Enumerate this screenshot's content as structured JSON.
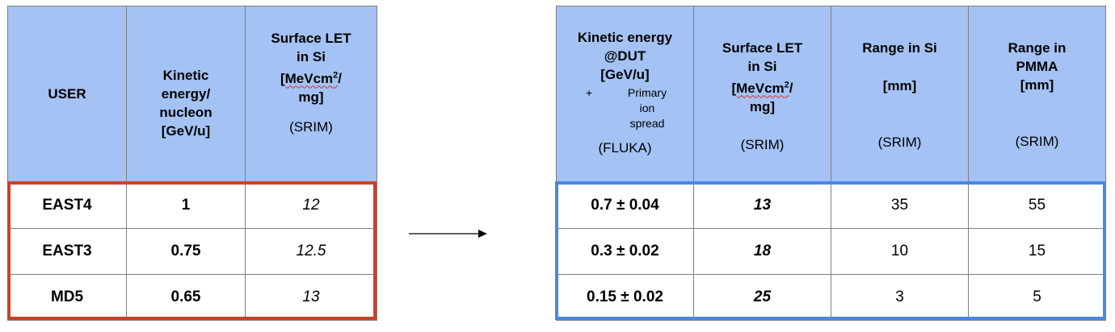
{
  "left_table": {
    "headers": {
      "user": "USER",
      "kinetic_line1": "Kinetic",
      "kinetic_line2": "energy/",
      "kinetic_line3": "nucleon",
      "kinetic_line4": "[GeV/u]",
      "let_line1": "Surface LET",
      "let_line2": "in Si",
      "let_line3a": "[MeVcm",
      "let_line3sup": "2",
      "let_line3b": "/",
      "let_line4": "mg]",
      "let_source": "(SRIM)"
    },
    "rows": [
      {
        "user": "EAST4",
        "energy": "1",
        "let": "12"
      },
      {
        "user": "EAST3",
        "energy": "0.75",
        "let": "12.5"
      },
      {
        "user": "MD5",
        "energy": "0.65",
        "let": "13"
      }
    ]
  },
  "right_table": {
    "headers": {
      "ke_line1": "Kinetic energy",
      "ke_line2": "@DUT",
      "ke_line3": "[GeV/u]",
      "ke_plus": "+",
      "ke_spread1": "Primary",
      "ke_spread2": "ion",
      "ke_spread3": "spread",
      "ke_source": "(FLUKA)",
      "let_line1": "Surface LET",
      "let_line2": "in Si",
      "let_line3a": "[MeVcm",
      "let_line3sup": "2",
      "let_line3b": "/",
      "let_line4": "mg]",
      "let_source": "(SRIM)",
      "rsi_line1": "Range in Si",
      "rsi_line2": "[mm]",
      "rsi_source": "(SRIM)",
      "rpmma_line1": "Range in",
      "rpmma_line2": "PMMA",
      "rpmma_line3": "[mm]",
      "rpmma_source": "(SRIM)"
    },
    "rows": [
      {
        "energy": "0.7 ± 0.04",
        "let": "13",
        "range_si": "35",
        "range_pmma": "55"
      },
      {
        "energy": "0.3 ± 0.02",
        "let": "18",
        "range_si": "10",
        "range_pmma": "15"
      },
      {
        "energy": "0.15 ± 0.02",
        "let": "25",
        "range_si": "3",
        "range_pmma": "5"
      }
    ]
  },
  "colors": {
    "header_bg": "#a4c2f4",
    "left_highlight": "#cc4125",
    "right_highlight": "#4a86e8"
  },
  "icons": {
    "arrow": "right-arrow-icon"
  }
}
